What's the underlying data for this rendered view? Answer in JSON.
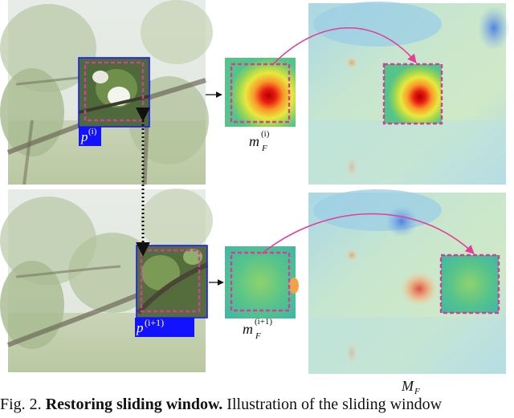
{
  "labels": {
    "patch_top": "p",
    "patch_top_sup": "(i)",
    "patch_bottom": "p",
    "patch_bottom_sup": "(i+1)",
    "map_top": "m",
    "map_top_sub": "F",
    "map_top_sup": "(i)",
    "map_bottom": "m",
    "map_bottom_sub": "F",
    "map_bottom_sup": "(i+1)",
    "global_map": "M",
    "global_map_sub": "F"
  },
  "caption": {
    "prefix": "Fig. 2.",
    "bold": "Restoring sliding window.",
    "rest": "Illustration of the sliding window"
  },
  "colors": {
    "patch_box": "#1a1aff",
    "dashed_box": "#d0409a",
    "arrow": "#e0409a",
    "label_bg": "#1212ff"
  }
}
